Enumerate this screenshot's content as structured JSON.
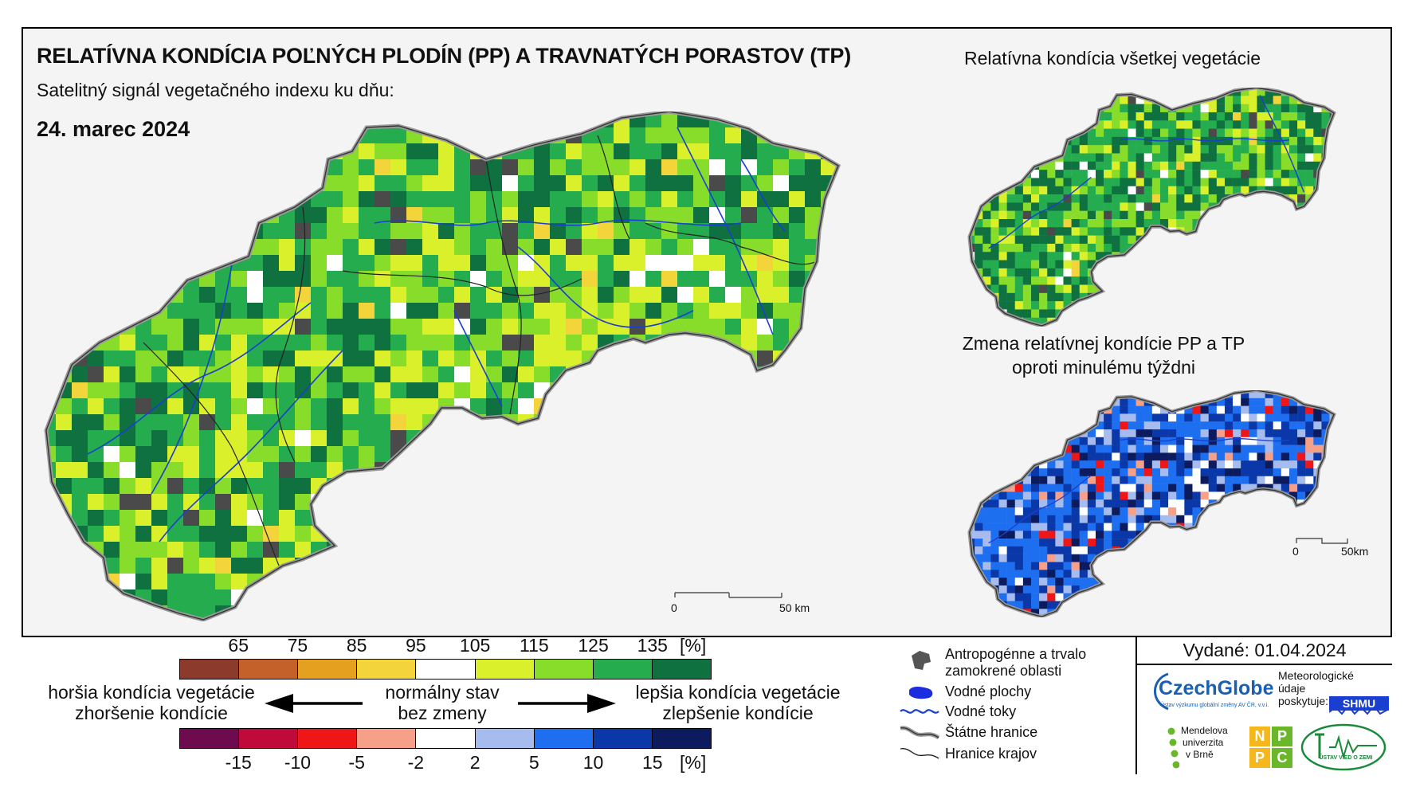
{
  "main": {
    "title": "RELATÍVNA KONDÍCIA POĽNÝCH PLODÍN (PP) A TRAVNATÝCH PORASTOV (TP)",
    "subtitle": "Satelitný signál vegetačného indexu ku dňu:",
    "date": "24. marec 2024",
    "scalebar": {
      "start": "0",
      "end": "50 km"
    }
  },
  "inset_top": {
    "title": "Relatívna kondícia všetkej vegetácie"
  },
  "inset_bottom": {
    "title_line1": "Zmena relatívnej kondície PP a TP",
    "title_line2": "oproti minulému týždni",
    "scalebar": {
      "start": "0",
      "end": "50km"
    }
  },
  "legend": {
    "condition_ticks": [
      "65",
      "75",
      "85",
      "95",
      "105",
      "115",
      "125",
      "135"
    ],
    "condition_unit": "[%]",
    "condition_colors": [
      "#8c3a2b",
      "#c4602a",
      "#e5a020",
      "#f3d43a",
      "#ffffff",
      "#d9f02a",
      "#88dc2a",
      "#25ac4e",
      "#0f7040"
    ],
    "change_ticks": [
      "-15",
      "-10",
      "-5",
      "-2",
      "2",
      "5",
      "10",
      "15"
    ],
    "change_unit": "[%]",
    "change_colors": [
      "#6e0a4e",
      "#c00a3a",
      "#ee1616",
      "#f6a08a",
      "#ffffff",
      "#a6bcef",
      "#1e6ef0",
      "#0a38a8",
      "#0c1a5e"
    ],
    "worse_line1": "horšia kondícia vegetácie",
    "worse_line2": "zhoršenie kondície",
    "normal_line1": "normálny stav",
    "normal_line2": "bez zmeny",
    "better_line1": "lepšia kondícia vegetácie",
    "better_line2": "zlepšenie kondície"
  },
  "map_legend": {
    "anthropogenic_line1": "Antropogénne a trvalo",
    "anthropogenic_line2": "zamokrené oblasti",
    "water_bodies": "Vodné plochy",
    "rivers": "Vodné toky",
    "state_border": "Štátne hranice",
    "region_border": "Hranice krajov"
  },
  "info": {
    "issued": "Vydané: 01.04.2024",
    "czechglobe": "CzechGlobe",
    "czechglobe_sub": "Ústav výzkumu globální změny AV ČR, v.v.i.",
    "meteo_line1": "Meteorologické",
    "meteo_line2": "údaje",
    "meteo_line3": "poskytuje:",
    "shmu": "SHMU",
    "mendel_line1": "Mendelova",
    "mendel_line2": "univerzita",
    "mendel_line3": "v Brně",
    "nppc": [
      "N",
      "P",
      "P",
      "C"
    ],
    "uvz": "ÚSTAV VIED O ZEMI"
  },
  "palettes": {
    "main_weights": [
      [
        0.02,
        0.03,
        0.14,
        0.24,
        0.33,
        0.24
      ],
      [
        0.02,
        0.08,
        0.28,
        0.3,
        0.22,
        0.1
      ]
    ],
    "change_weights": [
      [
        0.06,
        0.3,
        0.44,
        0.12,
        0.05,
        0.03
      ],
      [
        0.18,
        0.24,
        0.26,
        0.16,
        0.1,
        0.06
      ]
    ]
  }
}
